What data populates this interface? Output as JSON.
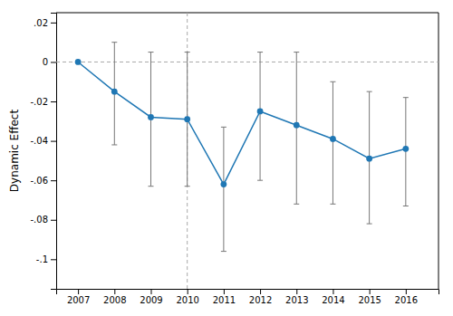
{
  "chart_data": {
    "type": "line",
    "ylabel": "Dynamic Effect",
    "x": [
      2007,
      2008,
      2009,
      2010,
      2011,
      2012,
      2013,
      2014,
      2015,
      2016
    ],
    "values": [
      0.0,
      -0.015,
      -0.028,
      -0.029,
      -0.062,
      -0.025,
      -0.032,
      -0.039,
      -0.049,
      -0.044
    ],
    "ci_upper": [
      0.0,
      0.01,
      0.005,
      0.005,
      -0.033,
      0.005,
      0.005,
      -0.01,
      -0.015,
      -0.018
    ],
    "ci_lower": [
      0.0,
      -0.042,
      -0.063,
      -0.063,
      -0.096,
      -0.06,
      -0.072,
      -0.072,
      -0.082,
      -0.073
    ],
    "hline_y": 0.0,
    "vline_x": 2010,
    "xlim": [
      2006.4,
      2016.9
    ],
    "xticks": [
      2007,
      2008,
      2009,
      2010,
      2011,
      2012,
      2013,
      2014,
      2015,
      2016
    ],
    "ylim": [
      -0.115,
      0.025
    ],
    "yticks": [
      {
        "value": 0.02,
        "label": ".02"
      },
      0,
      {
        "value": -0.02,
        "label": "-.02"
      },
      {
        "value": -0.04,
        "label": "-.04"
      },
      {
        "value": -0.06,
        "label": "-.06"
      },
      {
        "value": -0.08,
        "label": "-.08"
      },
      {
        "value": -0.1,
        "label": "-.1"
      }
    ],
    "marker": "circle",
    "line_style": "solid",
    "grid": false
  }
}
